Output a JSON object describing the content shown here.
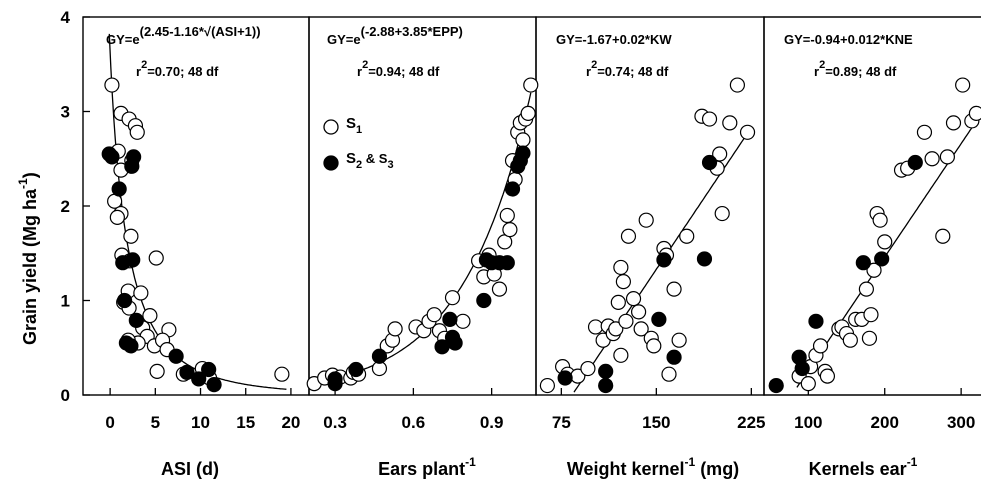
{
  "y_axis": {
    "title": "Grain yield (Mg ha",
    "exponent": "-1",
    "ticks": [
      "0",
      "1",
      "2",
      "3",
      "4"
    ]
  },
  "legend": {
    "s1": "S",
    "s1_sub": "1",
    "s23_a": "S",
    "s23_sub1": "2",
    "s23_amp": " & S",
    "s23_sub2": "3"
  },
  "chart_data": [
    {
      "type": "scatter",
      "xlabel": "ASI (d)",
      "x_ticks": [
        0,
        5,
        10,
        15,
        20
      ],
      "xlim": [
        -3,
        22
      ],
      "ylim": [
        0,
        4
      ],
      "equation": {
        "base": "GY=e",
        "exponent": "(2.45-1.16*√(ASI+1))",
        "r2": "=0.70; 48 df"
      },
      "fit": {
        "kind": "exp_sqrt",
        "a": 2.45,
        "b": -1.16,
        "x0": -0.25,
        "x1": 19.5
      },
      "series": [
        {
          "name": "S1",
          "points": [
            [
              0.2,
              3.28
            ],
            [
              1.2,
              2.98
            ],
            [
              2.1,
              2.92
            ],
            [
              2.8,
              2.85
            ],
            [
              3.0,
              2.78
            ],
            [
              0.9,
              2.58
            ],
            [
              1.2,
              2.38
            ],
            [
              2.4,
              2.48
            ],
            [
              0.5,
              2.05
            ],
            [
              1.2,
              1.92
            ],
            [
              2.3,
              1.68
            ],
            [
              0.8,
              1.88
            ],
            [
              1.3,
              1.48
            ],
            [
              2.2,
              1.42
            ],
            [
              2.0,
              1.1
            ],
            [
              5.1,
              1.45
            ],
            [
              3.4,
              1.08
            ],
            [
              1.5,
              0.98
            ],
            [
              2.1,
              0.92
            ],
            [
              4.4,
              0.84
            ],
            [
              3.6,
              0.71
            ],
            [
              4.1,
              0.62
            ],
            [
              3.1,
              0.55
            ],
            [
              2.0,
              0.58
            ],
            [
              4.9,
              0.52
            ],
            [
              6.5,
              0.69
            ],
            [
              5.8,
              0.58
            ],
            [
              6.3,
              0.48
            ],
            [
              5.2,
              0.25
            ],
            [
              8.1,
              0.22
            ],
            [
              10.2,
              0.28
            ],
            [
              11.0,
              0.18
            ],
            [
              19.0,
              0.22
            ]
          ]
        },
        {
          "name": "S2 & S3",
          "points": [
            [
              -0.1,
              2.55
            ],
            [
              0.2,
              2.52
            ],
            [
              1.0,
              2.18
            ],
            [
              2.6,
              2.52
            ],
            [
              2.4,
              2.42
            ],
            [
              1.4,
              1.4
            ],
            [
              2.5,
              1.43
            ],
            [
              1.6,
              1.0
            ],
            [
              2.9,
              0.79
            ],
            [
              1.8,
              0.55
            ],
            [
              2.3,
              0.52
            ],
            [
              7.3,
              0.41
            ],
            [
              8.5,
              0.24
            ],
            [
              9.8,
              0.17
            ],
            [
              10.9,
              0.27
            ],
            [
              11.5,
              0.11
            ]
          ]
        }
      ]
    },
    {
      "type": "scatter",
      "xlabel": "Ears plant",
      "xlabel_sup": "-1",
      "x_ticks": [
        "0.3",
        "0.6",
        "0.9"
      ],
      "x_tick_values": [
        0.3,
        0.6,
        0.9
      ],
      "xlim": [
        0.2,
        1.07
      ],
      "ylim": [
        0,
        4
      ],
      "equation": {
        "base": "GY=e",
        "exponent": "(-2.88+3.85*EPP)",
        "r2": "=0.94; 48 df"
      },
      "fit": {
        "kind": "exp_linear",
        "a": -2.88,
        "b": 3.85,
        "x0": 0.3,
        "x1": 1.05
      },
      "series": [
        {
          "name": "S1",
          "points": [
            [
              0.22,
              0.12
            ],
            [
              0.26,
              0.18
            ],
            [
              0.29,
              0.21
            ],
            [
              0.32,
              0.19
            ],
            [
              0.36,
              0.18
            ],
            [
              0.37,
              0.24
            ],
            [
              0.39,
              0.22
            ],
            [
              0.47,
              0.28
            ],
            [
              0.5,
              0.52
            ],
            [
              0.52,
              0.58
            ],
            [
              0.53,
              0.7
            ],
            [
              0.61,
              0.72
            ],
            [
              0.64,
              0.68
            ],
            [
              0.66,
              0.78
            ],
            [
              0.68,
              0.85
            ],
            [
              0.7,
              0.68
            ],
            [
              0.72,
              0.6
            ],
            [
              0.75,
              1.03
            ],
            [
              0.79,
              0.78
            ],
            [
              0.85,
              1.42
            ],
            [
              0.87,
              1.25
            ],
            [
              0.89,
              1.48
            ],
            [
              0.91,
              1.28
            ],
            [
              0.93,
              1.12
            ],
            [
              0.95,
              1.62
            ],
            [
              0.96,
              1.9
            ],
            [
              0.97,
              1.75
            ],
            [
              0.99,
              2.28
            ],
            [
              1.0,
              2.78
            ],
            [
              1.01,
              2.88
            ],
            [
              1.02,
              2.7
            ],
            [
              0.98,
              2.48
            ],
            [
              1.03,
              2.92
            ],
            [
              1.05,
              3.28
            ],
            [
              1.04,
              2.98
            ]
          ]
        },
        {
          "name": "S2 & S3",
          "points": [
            [
              0.3,
              0.17
            ],
            [
              0.3,
              0.12
            ],
            [
              0.38,
              0.27
            ],
            [
              0.47,
              0.41
            ],
            [
              0.71,
              0.51
            ],
            [
              0.74,
              0.8
            ],
            [
              0.75,
              0.61
            ],
            [
              0.76,
              0.55
            ],
            [
              0.87,
              1.0
            ],
            [
              0.88,
              1.43
            ],
            [
              0.9,
              1.4
            ],
            [
              0.93,
              1.4
            ],
            [
              0.96,
              1.4
            ],
            [
              0.98,
              2.18
            ],
            [
              1.0,
              2.42
            ],
            [
              1.01,
              2.48
            ],
            [
              1.02,
              2.56
            ]
          ]
        }
      ]
    },
    {
      "type": "scatter",
      "xlabel": "Weight kernel",
      "xlabel_sup": "-1",
      "xlabel_tail": " (mg)",
      "x_ticks": [
        75,
        150,
        225
      ],
      "xlim": [
        55,
        235
      ],
      "ylim": [
        0,
        4
      ],
      "equation": {
        "base": "GY=-1.67+0.02*KW",
        "r2": "=0.74; 48 df"
      },
      "fit": {
        "kind": "linear",
        "a": -1.67,
        "b": 0.02,
        "x0": 85,
        "x1": 220
      },
      "series": [
        {
          "name": "S1",
          "points": [
            [
              64,
              0.1
            ],
            [
              76,
              0.3
            ],
            [
              80,
              0.22
            ],
            [
              88,
              0.2
            ],
            [
              96,
              0.28
            ],
            [
              102,
              0.72
            ],
            [
              108,
              0.58
            ],
            [
              112,
              0.73
            ],
            [
              116,
              0.65
            ],
            [
              118,
              0.7
            ],
            [
              120,
              0.98
            ],
            [
              122,
              1.35
            ],
            [
              122,
              0.42
            ],
            [
              124,
              1.2
            ],
            [
              126,
              0.78
            ],
            [
              128,
              1.68
            ],
            [
              132,
              1.02
            ],
            [
              136,
              0.88
            ],
            [
              138,
              0.7
            ],
            [
              142,
              1.85
            ],
            [
              146,
              0.6
            ],
            [
              148,
              0.52
            ],
            [
              156,
              1.55
            ],
            [
              158,
              1.48
            ],
            [
              160,
              0.22
            ],
            [
              164,
              1.12
            ],
            [
              168,
              0.58
            ],
            [
              174,
              1.68
            ],
            [
              186,
              2.95
            ],
            [
              192,
              2.92
            ],
            [
              200,
              2.55
            ],
            [
              198,
              2.4
            ],
            [
              202,
              1.92
            ],
            [
              208,
              2.88
            ],
            [
              214,
              3.28
            ],
            [
              222,
              2.78
            ]
          ]
        },
        {
          "name": "S2 & S3",
          "points": [
            [
              78,
              0.18
            ],
            [
              110,
              0.25
            ],
            [
              110,
              0.1
            ],
            [
              152,
              0.8
            ],
            [
              156,
              1.43
            ],
            [
              164,
              0.4
            ],
            [
              188,
              1.44
            ],
            [
              192,
              2.46
            ]
          ]
        }
      ]
    },
    {
      "type": "scatter",
      "xlabel": "Kernels ear",
      "xlabel_sup": "-1",
      "x_ticks": [
        100,
        200,
        300
      ],
      "xlim": [
        42,
        326
      ],
      "ylim": [
        0,
        4
      ],
      "equation": {
        "base": "GY=-0.94+0.012*KNE",
        "r2": "=0.89; 48 df"
      },
      "fit": {
        "kind": "linear",
        "a": -0.94,
        "b": 0.012,
        "x0": 85,
        "x1": 330
      },
      "series": [
        {
          "name": "S1",
          "points": [
            [
              88,
              0.2
            ],
            [
              100,
              0.12
            ],
            [
              103,
              0.3
            ],
            [
              110,
              0.42
            ],
            [
              116,
              0.52
            ],
            [
              122,
              0.25
            ],
            [
              125,
              0.2
            ],
            [
              140,
              0.7
            ],
            [
              144,
              0.72
            ],
            [
              150,
              0.65
            ],
            [
              155,
              0.58
            ],
            [
              162,
              0.8
            ],
            [
              170,
              0.8
            ],
            [
              176,
              1.12
            ],
            [
              180,
              0.6
            ],
            [
              182,
              0.85
            ],
            [
              186,
              1.32
            ],
            [
              190,
              1.92
            ],
            [
              194,
              1.85
            ],
            [
              200,
              1.62
            ],
            [
              222,
              2.38
            ],
            [
              230,
              2.4
            ],
            [
              252,
              2.78
            ],
            [
              262,
              2.5
            ],
            [
              276,
              1.68
            ],
            [
              282,
              2.52
            ],
            [
              290,
              2.88
            ],
            [
              302,
              3.28
            ],
            [
              314,
              2.9
            ],
            [
              320,
              2.98
            ]
          ]
        },
        {
          "name": "S2 & S3",
          "points": [
            [
              58,
              0.1
            ],
            [
              88,
              0.4
            ],
            [
              92,
              0.28
            ],
            [
              110,
              0.78
            ],
            [
              172,
              1.4
            ],
            [
              196,
              1.44
            ],
            [
              240,
              2.46
            ]
          ]
        }
      ]
    }
  ]
}
